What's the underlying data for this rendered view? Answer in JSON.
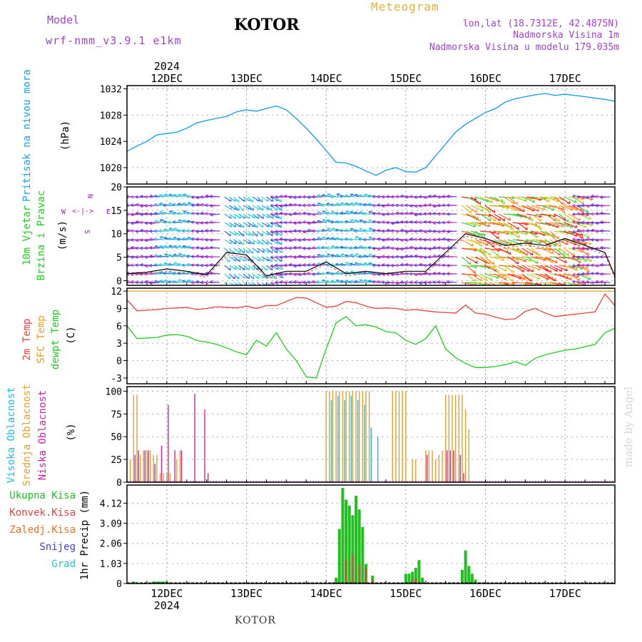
{
  "header": {
    "model_label": "Model",
    "model_name": "wrf-nmm_v3.9.1 e1km",
    "station": "KOTOR",
    "product": "Meteogram",
    "lonlat": "lon,lat (18.7312E, 42.4875N)",
    "elevation": "Nadmorska Visina 1m",
    "model_elevation": "Nadmorska Visina u modelu 179.035m",
    "footer_station": "KOTOR",
    "credit": "made by Angel"
  },
  "colors": {
    "model": "#a040d0",
    "product": "#e0b040",
    "info": "#a040d0",
    "pressure": "#1ca0e8",
    "temp2m": "#e84040",
    "sfc": "#e0a030",
    "dewpt": "#20cc20",
    "high_cloud": "#20b8e8",
    "mid_cloud": "#e0a030",
    "low_cloud": "#d020a0",
    "total_precip": "#20c020",
    "conv_precip": "#e84040",
    "frz_precip": "#f07020",
    "snow": "#4040e0",
    "graupel": "#20c8c8",
    "wind_arrows": "#a020c0"
  },
  "time_axis": {
    "year": "2024",
    "day_labels": [
      "12DEC",
      "13DEC",
      "14DEC",
      "15DEC",
      "16DEC",
      "17DEC"
    ]
  },
  "chart_data": [
    {
      "type": "line",
      "panel": "pressure",
      "ylabel_lines": [
        "Pritisak na nivou mora",
        "(hPa)"
      ],
      "ylim": [
        1017.5,
        1032.5
      ],
      "yticks": [
        1020,
        1024,
        1028,
        1032
      ],
      "x_unit": "hours from 11DEC 12:00",
      "xlim": [
        0,
        147
      ],
      "series": [
        {
          "x": [
            0,
            3,
            6,
            9,
            12,
            15,
            18,
            21,
            24,
            27,
            30,
            33,
            36,
            39,
            42,
            45,
            48,
            51,
            54,
            57,
            60,
            63,
            66,
            69,
            72,
            75,
            78,
            81,
            84,
            87,
            90,
            93,
            96,
            99,
            102,
            105,
            108,
            111,
            114,
            117,
            120,
            123,
            126,
            129,
            132,
            135,
            138,
            141,
            144,
            147
          ],
          "values": [
            1022.5,
            1023.3,
            1024.0,
            1025.0,
            1025.2,
            1025.4,
            1026.0,
            1026.8,
            1027.2,
            1027.5,
            1027.8,
            1028.5,
            1028.8,
            1028.6,
            1029.0,
            1029.4,
            1028.8,
            1027.5,
            1026.0,
            1024.4,
            1022.6,
            1020.8,
            1020.7,
            1020.2,
            1019.5,
            1018.8,
            1019.6,
            1020.0,
            1019.4,
            1019.3,
            1020.0,
            1021.8,
            1023.6,
            1025.4,
            1026.6,
            1027.5,
            1028.4,
            1029.0,
            1030.0,
            1030.5,
            1030.8,
            1031.1,
            1031.3,
            1031.0,
            1031.2,
            1031.0,
            1030.8,
            1030.6,
            1030.4,
            1030.1
          ]
        }
      ]
    },
    {
      "type": "line",
      "panel": "wind",
      "ylabel_lines": [
        "10m Vjetar",
        "Brzina i Pravac",
        "(m/s)"
      ],
      "direction_legend": [
        "N",
        "S",
        "W",
        "E"
      ],
      "ylim": [
        -1,
        20
      ],
      "yticks": [
        0,
        5,
        10,
        15,
        20
      ],
      "series": [
        {
          "name": "speed",
          "x": [
            0,
            6,
            12,
            18,
            24,
            30,
            36,
            42,
            48,
            54,
            60,
            66,
            72,
            78,
            84,
            90,
            96,
            102,
            108,
            114,
            120,
            126,
            132,
            138,
            144,
            147
          ],
          "values": [
            1.5,
            1.8,
            2.5,
            2.0,
            1.2,
            6.0,
            5.5,
            1.0,
            2.0,
            2.0,
            4.0,
            1.5,
            2.0,
            1.5,
            2.0,
            2.0,
            6.0,
            10.0,
            9.0,
            7.5,
            8.0,
            7.5,
            9.0,
            7.5,
            6.0,
            1.0
          ]
        }
      ]
    },
    {
      "type": "line",
      "panel": "temperature",
      "ylabel_lines": [
        "2m Temp",
        "SFC Temp",
        "dewpt Temp",
        "(C)"
      ],
      "ylim": [
        -4,
        12.5
      ],
      "yticks": [
        -3,
        0,
        3,
        6,
        9,
        12
      ],
      "series": [
        {
          "name": "2m Temp",
          "x": [
            0,
            3,
            6,
            9,
            12,
            15,
            18,
            21,
            24,
            27,
            30,
            33,
            36,
            39,
            42,
            45,
            48,
            51,
            54,
            57,
            60,
            63,
            66,
            69,
            72,
            75,
            78,
            81,
            84,
            87,
            90,
            93,
            96,
            99,
            102,
            105,
            108,
            111,
            114,
            117,
            120,
            123,
            126,
            129,
            132,
            135,
            138,
            141,
            144,
            147
          ],
          "values": [
            10.5,
            8.6,
            8.7,
            8.8,
            9.0,
            9.1,
            9.2,
            8.8,
            9.0,
            9.3,
            9.2,
            9.1,
            9.4,
            9.0,
            9.5,
            9.5,
            10.2,
            10.9,
            10.8,
            10.0,
            9.2,
            9.4,
            10.2,
            10.0,
            9.4,
            9.0,
            9.1,
            9.0,
            8.7,
            8.8,
            8.6,
            8.4,
            8.3,
            8.2,
            9.6,
            8.2,
            8.0,
            7.5,
            7.1,
            7.2,
            8.5,
            9.0,
            8.2,
            7.6,
            7.8,
            8.0,
            8.2,
            8.4,
            11.5,
            9.5
          ]
        },
        {
          "name": "SFC Temp",
          "x": [
            0,
            147
          ],
          "values": [
            12.0,
            12.0
          ]
        },
        {
          "name": "dewpt Temp",
          "x": [
            0,
            3,
            6,
            9,
            12,
            15,
            18,
            21,
            24,
            27,
            30,
            33,
            36,
            39,
            42,
            45,
            48,
            51,
            54,
            57,
            60,
            63,
            66,
            69,
            72,
            75,
            78,
            81,
            84,
            87,
            90,
            93,
            96,
            99,
            102,
            105,
            108,
            111,
            114,
            117,
            120,
            123,
            126,
            129,
            132,
            135,
            138,
            141,
            144,
            147
          ],
          "values": [
            6.0,
            3.8,
            3.9,
            4.0,
            4.4,
            4.5,
            4.2,
            3.5,
            3.2,
            2.8,
            2.2,
            1.5,
            1.0,
            3.5,
            2.5,
            4.8,
            2.0,
            0.0,
            -2.8,
            -3.0,
            2.0,
            6.5,
            7.6,
            6.0,
            6.2,
            5.8,
            5.0,
            4.8,
            3.5,
            2.8,
            3.8,
            6.0,
            2.0,
            0.5,
            -0.5,
            -1.2,
            -1.2,
            -1.0,
            -0.7,
            -0.2,
            -0.8,
            0.4,
            1.0,
            1.4,
            1.8,
            2.0,
            2.4,
            2.8,
            4.8,
            5.6
          ]
        }
      ]
    },
    {
      "type": "bar",
      "panel": "cloud_cover",
      "ylabel_lines": [
        "Visoka Oblacnost",
        "Srednja Oblacnost",
        "Niska Oblacnost",
        "(%)"
      ],
      "ylim": [
        0,
        105
      ],
      "yticks": [
        0,
        25,
        50,
        75,
        100
      ],
      "series": [
        {
          "name": "Srednja Oblacnost",
          "x": [
            1,
            2,
            3,
            4,
            5,
            6,
            7,
            8,
            9,
            10,
            11,
            12,
            13,
            15,
            16,
            60,
            61,
            62,
            63,
            64,
            65,
            66,
            67,
            68,
            69,
            70,
            71,
            72,
            73,
            80,
            81,
            82,
            83,
            84,
            86,
            87,
            90,
            91,
            92,
            93,
            94,
            95,
            96,
            97,
            98,
            99,
            100,
            101,
            102,
            103
          ],
          "values": [
            25,
            96,
            96,
            30,
            35,
            35,
            35,
            30,
            30,
            10,
            10,
            10,
            10,
            25,
            35,
            100,
            100,
            100,
            100,
            100,
            100,
            100,
            100,
            100,
            100,
            100,
            100,
            100,
            100,
            100,
            100,
            100,
            100,
            100,
            25,
            25,
            35,
            35,
            35,
            25,
            30,
            35,
            96,
            96,
            96,
            96,
            96,
            96,
            80,
            58
          ]
        },
        {
          "name": "Niska Oblacnost",
          "x": [
            2,
            3,
            5,
            6,
            8,
            10,
            12,
            14,
            16,
            20,
            23,
            24,
            90,
            96,
            97,
            98,
            100,
            101
          ],
          "values": [
            30,
            35,
            35,
            35,
            20,
            40,
            85,
            35,
            35,
            97,
            80,
            10,
            30,
            35,
            35,
            35,
            30,
            10
          ]
        },
        {
          "name": "Visoka Oblacnost",
          "x": [
            62,
            64,
            66,
            68,
            70,
            72,
            74,
            76
          ],
          "values": [
            90,
            95,
            90,
            95,
            90,
            85,
            60,
            50
          ]
        }
      ]
    },
    {
      "type": "bar",
      "panel": "precipitation",
      "ylabel_lines": [
        "1hr Precip (mm)"
      ],
      "legend": [
        "Ukupna Kisa",
        "Konvek.Kisa",
        "Zaledj.Kisa",
        "Snijeg",
        "Grad"
      ],
      "ylim": [
        0,
        5.05
      ],
      "yticks": [
        0,
        1.03,
        2.06,
        3.09,
        4.12
      ],
      "series": [
        {
          "name": "Ukupna Kisa",
          "x": [
            2,
            7,
            8,
            9,
            10,
            11,
            12,
            13,
            63,
            64,
            65,
            66,
            67,
            68,
            69,
            70,
            71,
            72,
            74,
            84,
            85,
            86,
            87,
            88,
            89,
            101,
            102,
            103,
            104,
            105
          ],
          "values": [
            0.1,
            0.05,
            0.1,
            0.1,
            0.1,
            0.1,
            0.1,
            0.05,
            0.3,
            2.8,
            4.9,
            4.3,
            4.0,
            3.5,
            4.5,
            3.8,
            2.9,
            1.0,
            0.4,
            0.5,
            0.5,
            0.6,
            0.8,
            1.2,
            0.3,
            0.7,
            1.7,
            0.9,
            0.5,
            0.2
          ]
        },
        {
          "name": "Konvek.Kisa",
          "x": [
            66,
            68,
            70,
            72,
            74,
            86,
            87
          ],
          "values": [
            1.2,
            1.5,
            1.0,
            0.8,
            0.2,
            0.2,
            0.3
          ]
        }
      ]
    }
  ]
}
